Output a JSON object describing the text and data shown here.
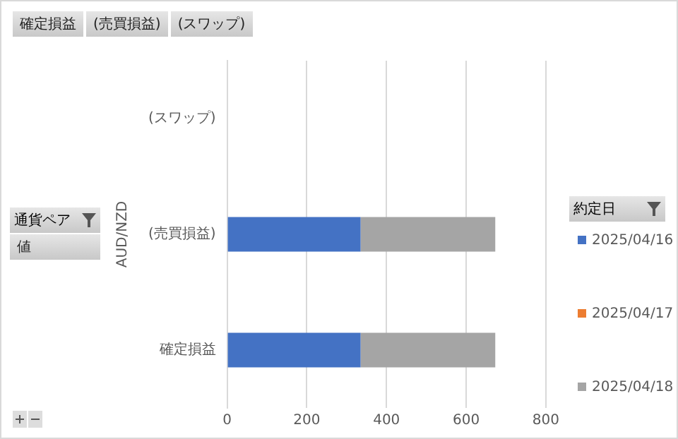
{
  "chart_data": {
    "type": "bar",
    "orientation": "horizontal",
    "stacked": true,
    "categories": [
      "(スワップ)",
      "(売買損益)",
      "確定損益"
    ],
    "series": [
      {
        "name": "2025/04/16",
        "color": "#4472c4",
        "values": [
          null,
          335,
          335
        ]
      },
      {
        "name": "2025/04/17",
        "color": "#ed7d31",
        "values": [
          null,
          null,
          null
        ]
      },
      {
        "name": "2025/04/18",
        "color": "#a5a5a5",
        "values": [
          null,
          338,
          338
        ]
      }
    ],
    "xlim": [
      0,
      800
    ],
    "xticks": [
      0,
      200,
      400,
      600,
      800
    ],
    "grid": "x",
    "legend": "right",
    "ylabel": "AUD/NZD",
    "legend_title": "約定日",
    "annotations": [
      "確定損益",
      "(売買損益)",
      "(スワップ)",
      "通貨ペア",
      "値"
    ]
  }
}
